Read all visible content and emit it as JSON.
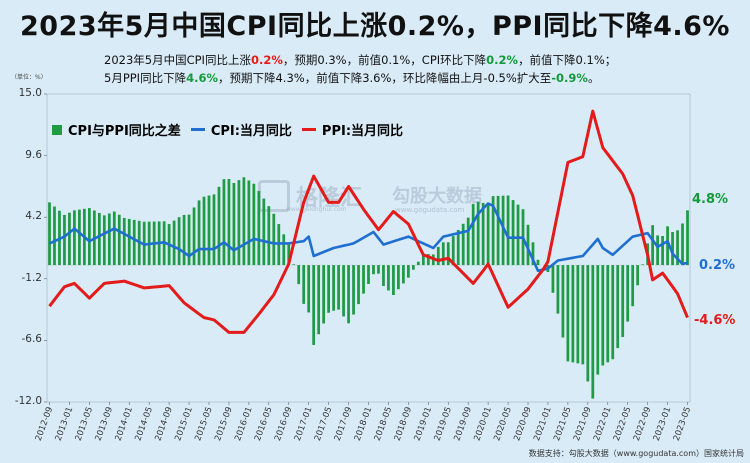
{
  "title": "2023年5月中国CPI同比上涨0.2%，PPI同比下降4.6%",
  "subtitle_line1": [
    {
      "t": "2023年5月中国CPI同比上涨",
      "c": ""
    },
    {
      "t": "0.2%",
      "c": "red"
    },
    {
      "t": "，预期0.3%，前值0.1%，CPI环比下降",
      "c": ""
    },
    {
      "t": "0.2%",
      "c": "green"
    },
    {
      "t": "，前值下降0.1%；",
      "c": ""
    }
  ],
  "subtitle_line2": [
    {
      "t": "5月PPI同比下降",
      "c": ""
    },
    {
      "t": "4.6%",
      "c": "green"
    },
    {
      "t": "，预期下降4.3%，前值下降3.6%，环比降幅由上月-0.5%扩大至",
      "c": ""
    },
    {
      "t": "-0.9%",
      "c": "green"
    },
    {
      "t": "。",
      "c": ""
    }
  ],
  "unit_label": "（单位：%）",
  "legend": {
    "diff": "CPI与PPI同比之差",
    "cpi": "CPI:当月同比",
    "ppi": "PPI:当月同比"
  },
  "end_labels": {
    "diff": "4.8%",
    "cpi": "0.2%",
    "ppi": "-4.6%"
  },
  "watermark": {
    "brand1": "格隆汇",
    "brand1_sub": "www.gelonghui.com",
    "brand2": "勾股大数据",
    "brand2_sub": "www.gogudata.com"
  },
  "source": "数据支持：勾股大数据（www.gogudata.com）国家统计局",
  "colors": {
    "diff": "#1f9a45",
    "cpi": "#1f6fd1",
    "ppi": "#e31b1b",
    "bg": "#d9ebf7"
  },
  "chart_data": {
    "type": "bar+line",
    "title": "2023年5月中国CPI同比上涨0.2%，PPI同比下降4.6%",
    "ylim": [
      -12.0,
      15.0
    ],
    "yticks": [
      15.0,
      9.6,
      4.2,
      -1.2,
      -6.6,
      -12.0
    ],
    "ytick_labels": [
      "15.0",
      "9.6",
      "4.2",
      "-1.2",
      "-6.6",
      "-12.0"
    ],
    "x_start": "2012-09",
    "x_end": "2023-05",
    "xtick_labels": [
      "2012-09",
      "2013-01",
      "2013-05",
      "2013-09",
      "2014-01",
      "2014-05",
      "2014-09",
      "2015-01",
      "2015-05",
      "2015-09",
      "2016-01",
      "2016-05",
      "2016-09",
      "2017-01",
      "2017-05",
      "2017-09",
      "2018-01",
      "2018-05",
      "2018-09",
      "2019-01",
      "2019-05",
      "2019-09",
      "2020-01",
      "2020-05",
      "2020-09",
      "2021-01",
      "2021-05",
      "2021-09",
      "2022-01",
      "2022-05",
      "2022-09",
      "2023-01",
      "2023-05"
    ],
    "series": [
      {
        "name": "CPI:当月同比",
        "type": "line",
        "keypoints": [
          [
            "2012-09",
            1.9
          ],
          [
            "2012-12",
            2.5
          ],
          [
            "2013-02",
            3.2
          ],
          [
            "2013-05",
            2.1
          ],
          [
            "2013-10",
            3.2
          ],
          [
            "2014-01",
            2.5
          ],
          [
            "2014-04",
            1.8
          ],
          [
            "2014-08",
            2.0
          ],
          [
            "2014-11",
            1.4
          ],
          [
            "2015-01",
            0.8
          ],
          [
            "2015-03",
            1.4
          ],
          [
            "2015-06",
            1.4
          ],
          [
            "2015-08",
            2.0
          ],
          [
            "2015-10",
            1.3
          ],
          [
            "2016-02",
            2.3
          ],
          [
            "2016-06",
            1.9
          ],
          [
            "2016-09",
            1.9
          ],
          [
            "2016-12",
            2.1
          ],
          [
            "2017-01",
            2.5
          ],
          [
            "2017-02",
            0.8
          ],
          [
            "2017-06",
            1.5
          ],
          [
            "2017-10",
            1.9
          ],
          [
            "2018-02",
            2.9
          ],
          [
            "2018-04",
            1.8
          ],
          [
            "2018-09",
            2.5
          ],
          [
            "2018-12",
            1.9
          ],
          [
            "2019-02",
            1.5
          ],
          [
            "2019-04",
            2.5
          ],
          [
            "2019-09",
            3.0
          ],
          [
            "2019-11",
            4.5
          ],
          [
            "2020-01",
            5.4
          ],
          [
            "2020-02",
            5.2
          ],
          [
            "2020-05",
            2.4
          ],
          [
            "2020-08",
            2.4
          ],
          [
            "2020-11",
            -0.5
          ],
          [
            "2021-01",
            -0.3
          ],
          [
            "2021-03",
            0.4
          ],
          [
            "2021-08",
            0.8
          ],
          [
            "2021-11",
            2.3
          ],
          [
            "2021-12",
            1.5
          ],
          [
            "2022-02",
            0.9
          ],
          [
            "2022-06",
            2.5
          ],
          [
            "2022-09",
            2.8
          ],
          [
            "2022-11",
            1.6
          ],
          [
            "2023-01",
            2.1
          ],
          [
            "2023-02",
            1.0
          ],
          [
            "2023-04",
            0.1
          ],
          [
            "2023-05",
            0.2
          ]
        ]
      },
      {
        "name": "PPI:当月同比",
        "type": "line",
        "keypoints": [
          [
            "2012-09",
            -3.6
          ],
          [
            "2012-12",
            -1.9
          ],
          [
            "2013-02",
            -1.6
          ],
          [
            "2013-05",
            -2.9
          ],
          [
            "2013-08",
            -1.6
          ],
          [
            "2013-12",
            -1.4
          ],
          [
            "2014-04",
            -2.0
          ],
          [
            "2014-09",
            -1.8
          ],
          [
            "2014-12",
            -3.3
          ],
          [
            "2015-04",
            -4.6
          ],
          [
            "2015-06",
            -4.8
          ],
          [
            "2015-09",
            -5.9
          ],
          [
            "2015-12",
            -5.9
          ],
          [
            "2016-03",
            -4.3
          ],
          [
            "2016-06",
            -2.6
          ],
          [
            "2016-09",
            0.1
          ],
          [
            "2016-12",
            5.5
          ],
          [
            "2017-02",
            7.8
          ],
          [
            "2017-05",
            5.5
          ],
          [
            "2017-07",
            5.5
          ],
          [
            "2017-09",
            6.9
          ],
          [
            "2017-12",
            4.9
          ],
          [
            "2018-03",
            3.1
          ],
          [
            "2018-06",
            4.7
          ],
          [
            "2018-09",
            3.6
          ],
          [
            "2018-12",
            0.9
          ],
          [
            "2019-03",
            0.4
          ],
          [
            "2019-05",
            0.6
          ],
          [
            "2019-10",
            -1.6
          ],
          [
            "2019-12",
            -0.5
          ],
          [
            "2020-01",
            0.1
          ],
          [
            "2020-05",
            -3.7
          ],
          [
            "2020-09",
            -2.1
          ],
          [
            "2020-12",
            -0.4
          ],
          [
            "2021-01",
            0.3
          ],
          [
            "2021-05",
            9.0
          ],
          [
            "2021-08",
            9.5
          ],
          [
            "2021-10",
            13.5
          ],
          [
            "2021-12",
            10.3
          ],
          [
            "2022-04",
            8.0
          ],
          [
            "2022-06",
            6.1
          ],
          [
            "2022-09",
            0.9
          ],
          [
            "2022-10",
            -1.3
          ],
          [
            "2022-12",
            -0.7
          ],
          [
            "2023-03",
            -2.5
          ],
          [
            "2023-05",
            -4.6
          ]
        ]
      },
      {
        "name": "CPI与PPI同比之差",
        "type": "bar",
        "derived": "CPI - PPI"
      }
    ]
  }
}
